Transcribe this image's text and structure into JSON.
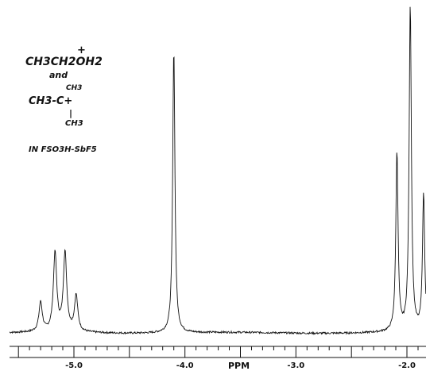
{
  "chart_data": {
    "type": "line",
    "title": "",
    "xlabel": "PPM",
    "ylabel": "",
    "x_reversed": true,
    "xlim": [
      -5.55,
      -1.75
    ],
    "ylim": [
      0,
      100
    ],
    "grid": false,
    "ticks": [
      {
        "value": -5.0,
        "label": "-5.0"
      },
      {
        "value": -4.0,
        "label": "-4.0"
      },
      {
        "value": -3.0,
        "label": "-3.0"
      },
      {
        "value": -2.0,
        "label": "-2.0"
      }
    ],
    "peaks": [
      {
        "x": -5.3,
        "height": 9
      },
      {
        "x": -5.17,
        "height": 24
      },
      {
        "x": -5.08,
        "height": 24
      },
      {
        "x": -4.98,
        "height": 11
      },
      {
        "x": -4.1,
        "height": 87
      },
      {
        "x": -2.09,
        "height": 55
      },
      {
        "x": -1.97,
        "height": 100
      },
      {
        "x": -1.85,
        "height": 42
      }
    ],
    "annotation": {
      "lines": [
        "CH3CH2OH2",
        "and",
        "CH3",
        "CH3-C+",
        "|",
        "CH3",
        "IN FSO3H-SbF5"
      ]
    }
  }
}
